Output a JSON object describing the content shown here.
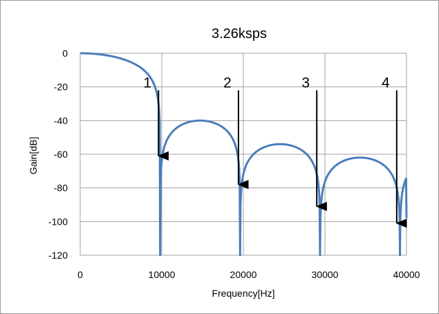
{
  "chart_data": {
    "type": "line",
    "title": "3.26ksps",
    "xlabel": "Frequency[Hz]",
    "ylabel": "Gain[dB]",
    "xlim": [
      0,
      40000
    ],
    "ylim": [
      -120,
      0
    ],
    "xticks": [
      "0",
      "10000",
      "20000",
      "30000",
      "40000"
    ],
    "yticks": [
      "0",
      "-20",
      "-40",
      "-60",
      "-80",
      "-100",
      "-120"
    ],
    "grid": true,
    "series": [
      {
        "color": "#4a7ebb",
        "peaks": [
          {
            "x": 0,
            "y": 0
          },
          {
            "x": 14000,
            "y": -40
          },
          {
            "x": 24000,
            "y": -54
          },
          {
            "x": 34000,
            "y": -62
          }
        ],
        "nulls_at": [
          9800,
          19600,
          29400,
          39200
        ],
        "end_point": {
          "x": 40000,
          "y": -98
        }
      }
    ],
    "annotations": [
      {
        "label": "1",
        "x": 9600,
        "y_from": -22,
        "y_to": -61
      },
      {
        "label": "2",
        "x": 19400,
        "y_from": -22,
        "y_to": -78
      },
      {
        "label": "3",
        "x": 29000,
        "y_from": -22,
        "y_to": -91
      },
      {
        "label": "4",
        "x": 38800,
        "y_from": -22,
        "y_to": -101
      }
    ]
  }
}
